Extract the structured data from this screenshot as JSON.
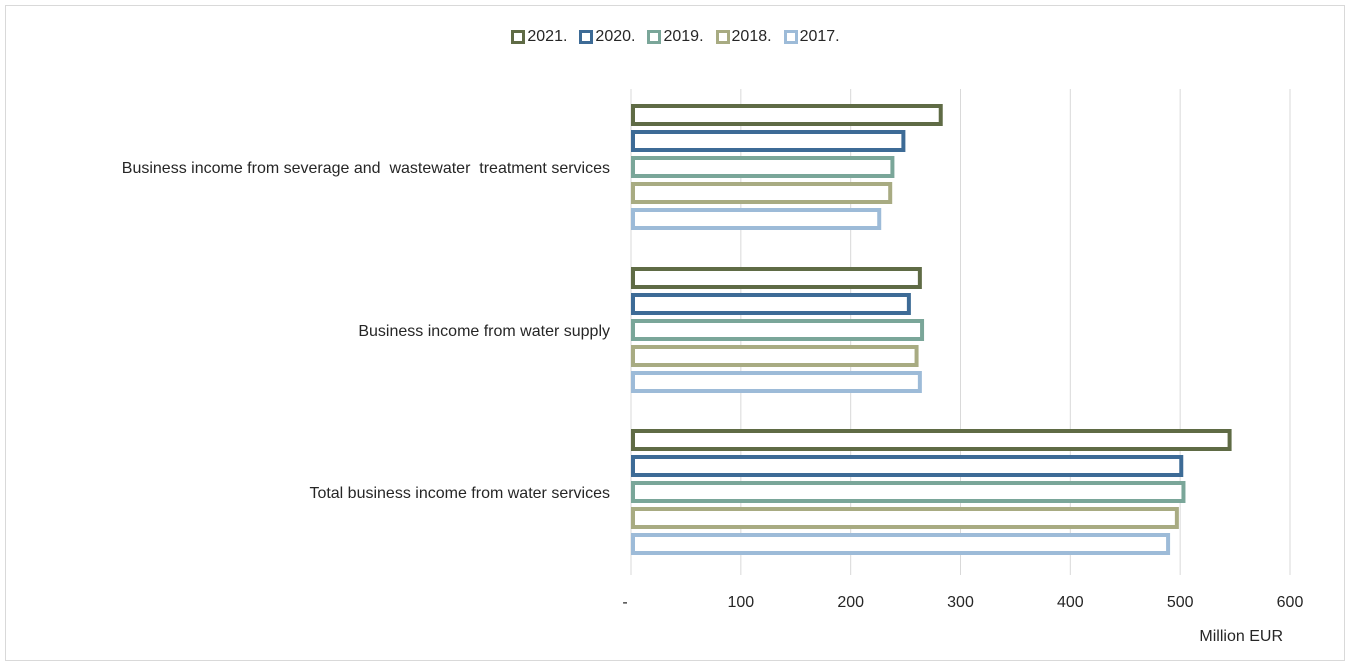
{
  "chart_data": {
    "type": "bar",
    "orientation": "horizontal",
    "categories": [
      "Business income from severage and  wastewater  treatment services",
      "Business income from water supply",
      "Total business income from water services"
    ],
    "series": [
      {
        "name": "2021.",
        "color": "#5f6b45",
        "values": [
          282,
          263,
          545
        ]
      },
      {
        "name": "2020.",
        "color": "#3d6b96",
        "values": [
          248,
          253,
          501
        ]
      },
      {
        "name": "2019.",
        "color": "#7aa699",
        "values": [
          238,
          265,
          503
        ]
      },
      {
        "name": "2018.",
        "color": "#a8ab82",
        "values": [
          236,
          260,
          497
        ]
      },
      {
        "name": "2017.",
        "color": "#9dbbd8",
        "values": [
          226,
          263,
          489
        ]
      }
    ],
    "xlim": [
      0,
      600
    ],
    "xticks": [
      {
        "value": 0,
        "label": "-"
      },
      {
        "value": 100,
        "label": "100"
      },
      {
        "value": 200,
        "label": "200"
      },
      {
        "value": 300,
        "label": "300"
      },
      {
        "value": 400,
        "label": "400"
      },
      {
        "value": 500,
        "label": "500"
      },
      {
        "value": 600,
        "label": "600"
      }
    ],
    "xlabel": "Million EUR",
    "ylabel": "",
    "title": "",
    "grid": true,
    "legend_position": "top-center"
  }
}
